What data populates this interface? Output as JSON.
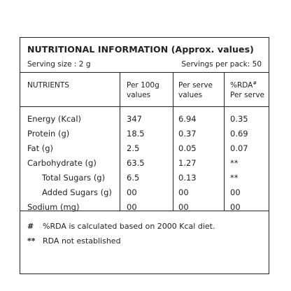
{
  "title": "NUTRITIONAL INFORMATION (Approx. values)",
  "serving_size": "Serving size : 2 g",
  "servings_per_pack": "Servings per pack: 50",
  "headers": {
    "nutrients": "NUTRIENTS",
    "per100_l1": "Per 100g",
    "per100_l2": "values",
    "perserve_l1": "Per serve",
    "perserve_l2": "values",
    "rda_l1": "%RDA",
    "rda_mark": "#",
    "rda_l2": "Per serve"
  },
  "rows": [
    {
      "nutrient": "Energy (Kcal)",
      "per100": "347",
      "perserve": "6.94",
      "rda": "0.35"
    },
    {
      "nutrient": "Protein (g)",
      "per100": "18.5",
      "perserve": "0.37",
      "rda": "0.69"
    },
    {
      "nutrient": "Fat (g)",
      "per100": "2.5",
      "perserve": "0.05",
      "rda": "0.07"
    },
    {
      "nutrient": "Carbohydrate (g)",
      "per100": "63.5",
      "perserve": "1.27",
      "rda": "**"
    },
    {
      "nutrient": "Total Sugars (g)",
      "per100": "6.5",
      "perserve": "0.13",
      "rda": "**"
    },
    {
      "nutrient": "Added Sugars (g)",
      "per100": "00",
      "perserve": "00",
      "rda": "00"
    },
    {
      "nutrient": "Sodium (mg)",
      "per100": "00",
      "perserve": "00",
      "rda": "00"
    }
  ],
  "footnotes": [
    {
      "mark": "#",
      "text": "%RDA is calculated based on 2000 Kcal diet."
    },
    {
      "mark": "**",
      "text": "RDA not established"
    }
  ]
}
